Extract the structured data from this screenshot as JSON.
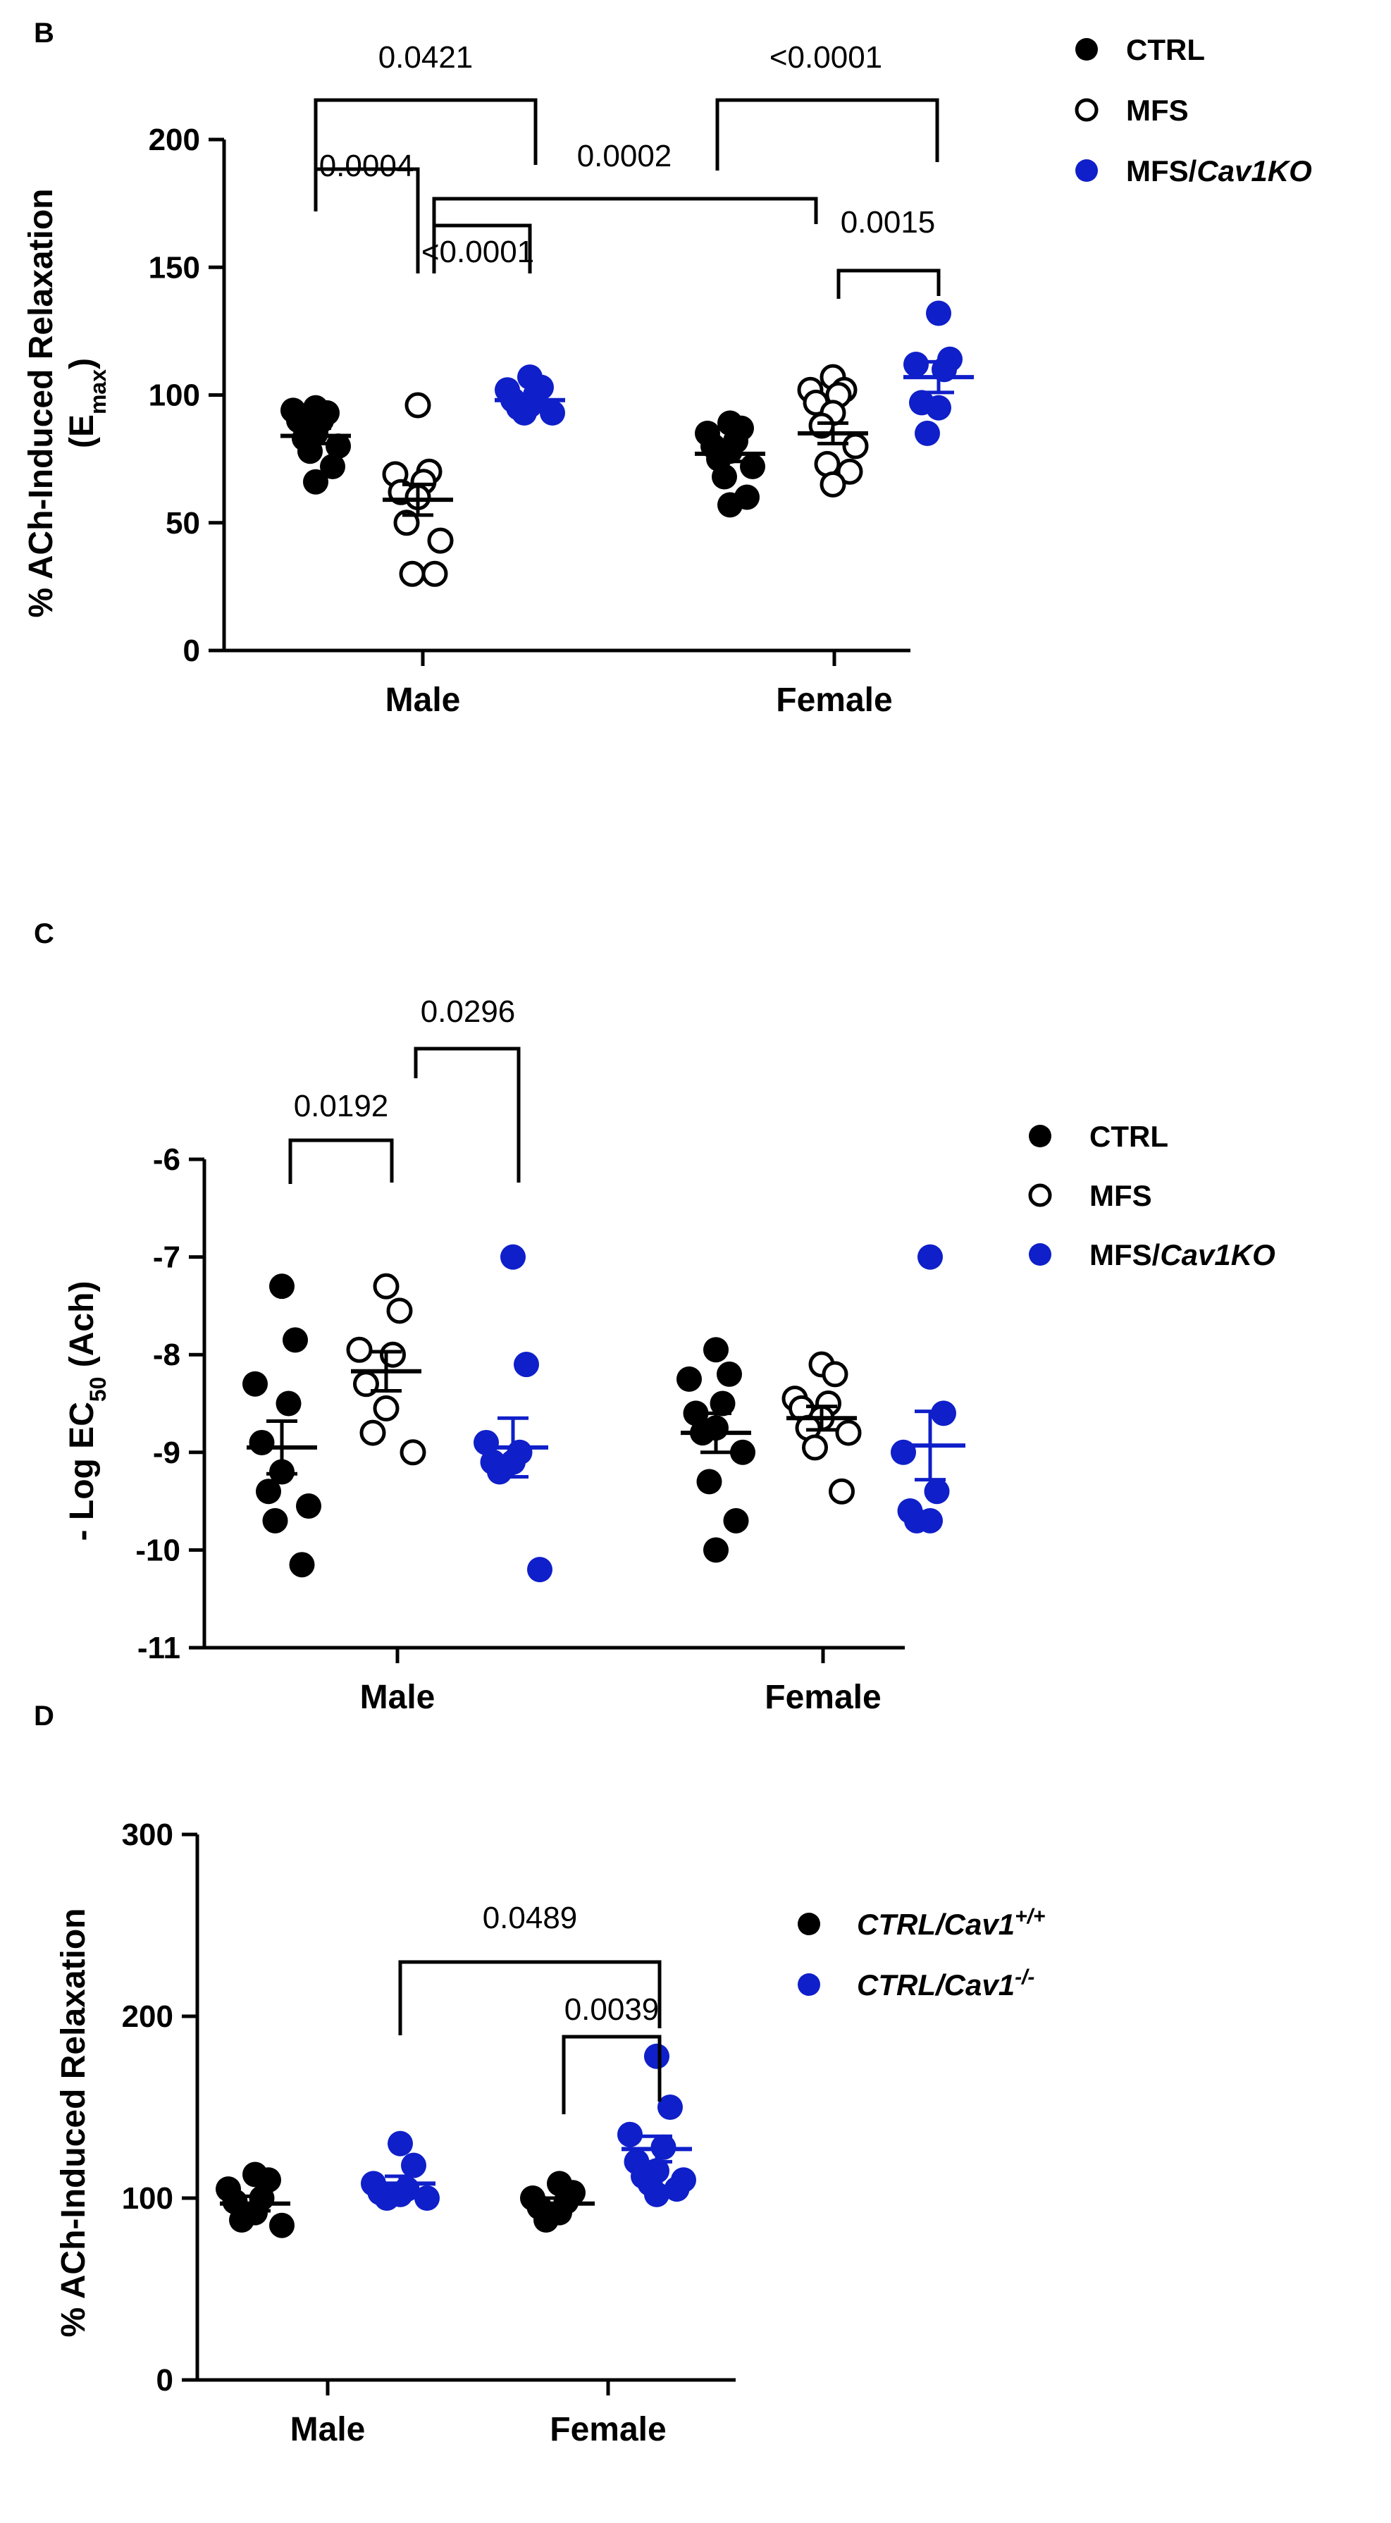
{
  "chart_data": [
    {
      "panel": "B",
      "type": "scatter",
      "ylabel": "% ACh-Induced Relaxation",
      "ylabel_line2": "(E",
      "ylabel_sub": "max",
      "ylabel_line2_end": ")",
      "ylim": [
        0,
        200
      ],
      "yticks": [
        0,
        50,
        100,
        150,
        200
      ],
      "categories": [
        "Male",
        "Female"
      ],
      "legend_position": "top-right",
      "series": [
        {
          "name": "CTRL",
          "style": "filled",
          "color": "#000000",
          "groups": [
            {
              "values": [
                95,
                93,
                94,
                90,
                90,
                85,
                83,
                80,
                78,
                72,
                66
              ],
              "mean": 84,
              "sem": 3
            },
            {
              "values": [
                89,
                87,
                85,
                82,
                80,
                78,
                75,
                72,
                68,
                60,
                57
              ],
              "mean": 77,
              "sem": 3
            }
          ]
        },
        {
          "name": "MFS",
          "style": "open",
          "color": "#000000",
          "groups": [
            {
              "values": [
                96,
                70,
                69,
                66,
                62,
                60,
                50,
                43,
                30,
                30
              ],
              "mean": 59,
              "sem": 6
            },
            {
              "values": [
                107,
                102,
                102,
                100,
                97,
                93,
                88,
                80,
                73,
                70,
                65
              ],
              "mean": 85,
              "sem": 4
            }
          ]
        },
        {
          "name": "MFS/",
          "name_italic": "Cav1KO",
          "style": "filled",
          "color": "#0f1fc9",
          "groups": [
            {
              "values": [
                107,
                103,
                102,
                100,
                98,
                96,
                95,
                93,
                93
              ],
              "mean": 98,
              "sem": 2
            },
            {
              "values": [
                132,
                114,
                112,
                110,
                97,
                95,
                85
              ],
              "mean": 107,
              "sem": 6
            }
          ]
        }
      ],
      "comparisons": [
        {
          "label": "0.0421",
          "from": [
            0,
            0
          ],
          "to": [
            0,
            1
          ]
        },
        {
          "label": "0.0004",
          "from": [
            0,
            0
          ],
          "to": [
            0,
            1
          ]
        },
        {
          "label": "<0.0001",
          "from": [
            0,
            1
          ],
          "to": [
            0,
            2
          ]
        },
        {
          "label": "0.0002",
          "from": [
            0,
            1
          ],
          "to": [
            1,
            1
          ]
        },
        {
          "label": "<0.0001",
          "from": [
            1,
            0
          ],
          "to": [
            1,
            2
          ]
        },
        {
          "label": "0.0015",
          "from": [
            1,
            1
          ],
          "to": [
            1,
            2
          ]
        }
      ]
    },
    {
      "panel": "C",
      "type": "scatter",
      "ylabel": "- Log EC",
      "ylabel_sub": "50",
      "ylabel_end": " (Ach)",
      "ylim": [
        -11,
        -6
      ],
      "yticks": [
        -6,
        -7,
        -8,
        -9,
        -10,
        -11
      ],
      "categories": [
        "Male",
        "Female"
      ],
      "legend_position": "right",
      "series": [
        {
          "name": "CTRL",
          "style": "filled",
          "color": "#000000",
          "groups": [
            {
              "values": [
                -7.3,
                -7.85,
                -8.3,
                -8.5,
                -8.9,
                -9.2,
                -9.4,
                -9.55,
                -9.7,
                -10.15
              ],
              "mean": -8.95,
              "sem": 0.27
            },
            {
              "values": [
                -7.95,
                -8.2,
                -8.25,
                -8.5,
                -8.6,
                -8.75,
                -8.8,
                -9.0,
                -9.3,
                -9.7,
                -10.0
              ],
              "mean": -8.8,
              "sem": 0.2
            }
          ]
        },
        {
          "name": "MFS",
          "style": "open",
          "color": "#000000",
          "groups": [
            {
              "values": [
                -7.3,
                -7.55,
                -7.95,
                -8.0,
                -8.3,
                -8.55,
                -8.8,
                -9.0
              ],
              "mean": -8.17,
              "sem": 0.2
            },
            {
              "values": [
                -8.1,
                -8.2,
                -8.45,
                -8.5,
                -8.55,
                -8.65,
                -8.75,
                -8.8,
                -8.95,
                -9.4
              ],
              "mean": -8.65,
              "sem": 0.12
            }
          ]
        },
        {
          "name": "MFS/",
          "name_italic": "Cav1KO",
          "style": "filled",
          "color": "#0f1fc9",
          "groups": [
            {
              "values": [
                -7.0,
                -8.1,
                -8.9,
                -9.0,
                -9.1,
                -9.1,
                -9.2,
                -10.2
              ],
              "mean": -8.95,
              "sem": 0.3
            },
            {
              "values": [
                -7.0,
                -8.6,
                -9.0,
                -9.4,
                -9.6,
                -9.7,
                -9.7
              ],
              "mean": -8.93,
              "sem": 0.35
            }
          ]
        }
      ],
      "comparisons": [
        {
          "label": "0.0192",
          "from": [
            0,
            0
          ],
          "to": [
            0,
            1
          ]
        },
        {
          "label": "0.0296",
          "from": [
            0,
            1
          ],
          "to": [
            0,
            2
          ]
        }
      ]
    },
    {
      "panel": "D",
      "type": "scatter",
      "ylabel": "% ACh-Induced Relaxation",
      "ylim": [
        0,
        300
      ],
      "yticks": [
        0,
        100,
        200,
        300
      ],
      "categories": [
        "Male",
        "Female"
      ],
      "legend_position": "right",
      "series": [
        {
          "name": "CTRL/Cav1",
          "name_sup": "+/+",
          "style": "filled",
          "color": "#000000",
          "groups": [
            {
              "values": [
                113,
                110,
                105,
                100,
                98,
                92,
                88,
                85
              ],
              "mean": 97,
              "sem": 4
            },
            {
              "values": [
                108,
                103,
                100,
                98,
                95,
                92,
                88
              ],
              "mean": 97,
              "sem": 3
            }
          ]
        },
        {
          "name": "CTRL/Cav1",
          "name_sup": "-/-",
          "style": "filled",
          "color": "#0f1fc9",
          "groups": [
            {
              "values": [
                130,
                118,
                108,
                105,
                103,
                102,
                100,
                100
              ],
              "mean": 108,
              "sem": 4
            },
            {
              "values": [
                178,
                150,
                135,
                128,
                120,
                115,
                112,
                110,
                108,
                105,
                102
              ],
              "mean": 127,
              "sem": 7
            }
          ]
        }
      ],
      "comparisons": [
        {
          "label": "0.0489",
          "from": [
            0,
            1
          ],
          "to": [
            1,
            1
          ]
        },
        {
          "label": "0.0039",
          "from": [
            1,
            0
          ],
          "to": [
            1,
            1
          ]
        }
      ]
    }
  ]
}
